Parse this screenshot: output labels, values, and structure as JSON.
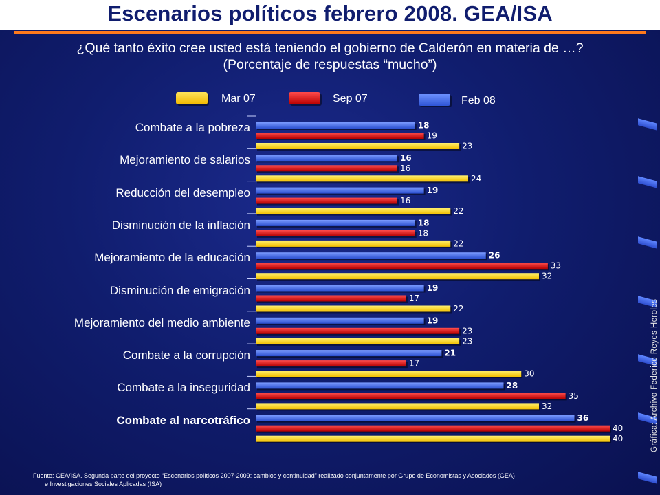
{
  "title": "Escenarios políticos febrero 2008. GEA/ISA",
  "subtitle_line1": "¿Qué tanto éxito cree usted está teniendo el gobierno de Calderón en materia de …?",
  "subtitle_line2": "(Porcentaje de respuestas “mucho”)",
  "legend": [
    {
      "label": "Mar 07",
      "color": "#ffd21a"
    },
    {
      "label": "Sep 07",
      "color": "#d61414"
    },
    {
      "label": "Feb 08",
      "color": "#3e6cf0"
    }
  ],
  "side_note": "Gráfica: Archivo Federico Reyes Heroles",
  "source_line1": "Fuente: GEA/ISA. Segunda parte del proyecto “Escenarios políticos 2007-2009: cambios y continuidad” realizado conjuntamente por Grupo de Economistas y Asociados (GEA)",
  "source_line2": "e Investigaciones Sociales Aplicadas (ISA)",
  "chart_data": {
    "type": "bar",
    "orientation": "horizontal",
    "categories": [
      "Combate a la pobreza",
      "Mejoramiento de salarios",
      "Reducción del desempleo",
      "Disminución de la inflación",
      "Mejoramiento de la educación",
      "Disminución de emigración",
      "Mejoramiento del medio ambiente",
      "Combate a la corrupción",
      "Combate a la inseguridad",
      "Combate al narcotráfico"
    ],
    "series": [
      {
        "name": "Feb 08",
        "color": "#3e6cf0",
        "values": [
          18,
          16,
          19,
          18,
          26,
          19,
          19,
          21,
          28,
          36
        ]
      },
      {
        "name": "Sep 07",
        "color": "#d61414",
        "values": [
          19,
          16,
          16,
          18,
          33,
          17,
          23,
          17,
          35,
          40
        ]
      },
      {
        "name": "Mar 07",
        "color": "#ffd21a",
        "values": [
          23,
          24,
          22,
          22,
          32,
          22,
          23,
          30,
          32,
          40
        ]
      }
    ],
    "xlim": [
      0,
      40
    ],
    "grid": false,
    "legend_position": "top"
  }
}
